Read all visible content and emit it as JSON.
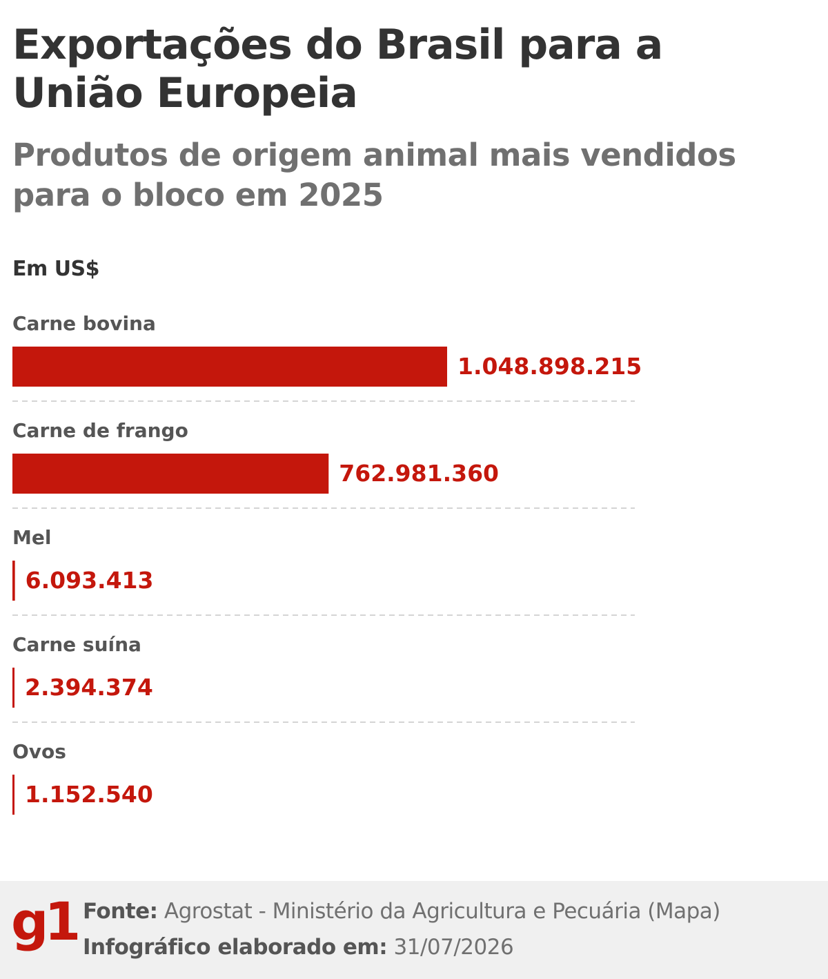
{
  "header": {
    "title": "Exportações do Brasil para a União Europeia",
    "subtitle": "Produtos de origem animal mais vendidos para o bloco em 2025",
    "unit": "Em US$"
  },
  "chart_data": {
    "type": "bar",
    "orientation": "horizontal",
    "title": "Exportações do Brasil para a União Europeia",
    "subtitle": "Produtos de origem animal mais vendidos para o bloco em 2025",
    "unit_label": "Em US$",
    "categories": [
      "Carne bovina",
      "Carne de frango",
      "Mel",
      "Carne suína",
      "Ovos"
    ],
    "values": [
      1048898215,
      762981360,
      6093413,
      2394374,
      1152540
    ],
    "value_labels": [
      "1.048.898.215",
      "762.981.360",
      "6.093.413",
      "2.394.374",
      "1.152.540"
    ],
    "xlim": [
      0,
      1048898215
    ],
    "bar_color": "#c4170c",
    "grid": false
  },
  "footer": {
    "logo": "g1",
    "source_label": "Fonte:",
    "source_text": "Agrostat - Ministério da Agricultura e Pecuária (Mapa)",
    "date_label": "Infográfico elaborado em:",
    "date_text": "31/07/2026"
  },
  "colors": {
    "accent": "#c4170c",
    "title": "#333333",
    "subtitle": "#707070",
    "footer_bg": "#f0f0f0"
  }
}
